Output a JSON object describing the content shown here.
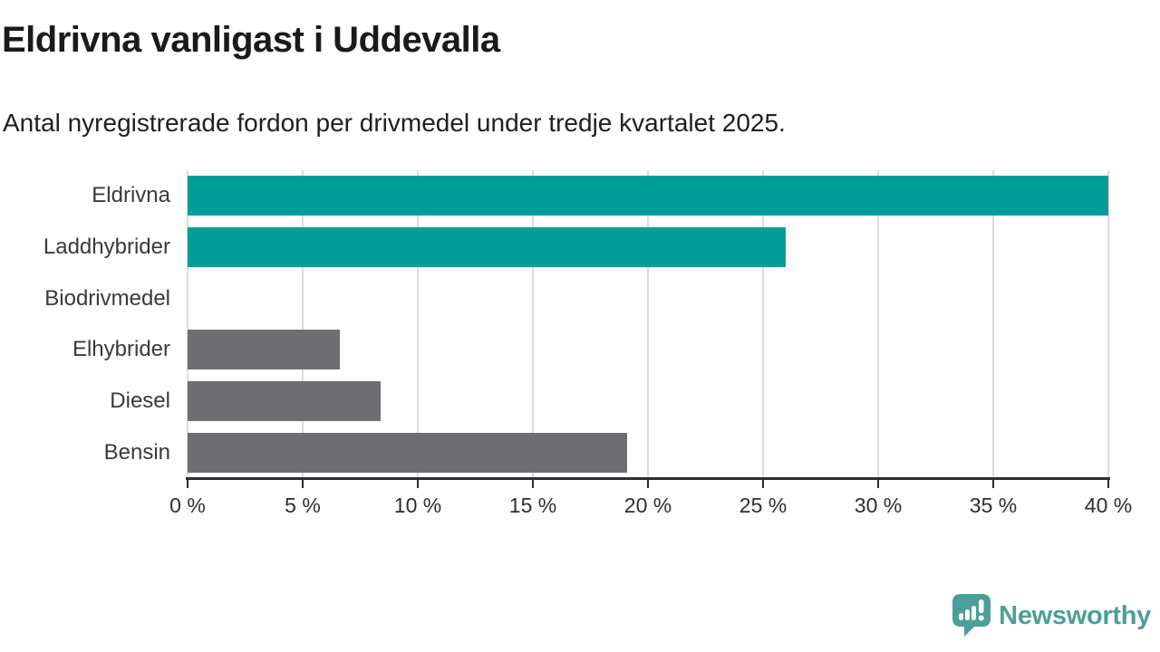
{
  "header": {
    "title": "Eldrivna vanligast i Uddevalla",
    "subtitle": "Antal nyregistrerade fordon per drivmedel under tredje kvartalet 2025."
  },
  "chart_data": {
    "type": "bar",
    "orientation": "horizontal",
    "title": "Eldrivna vanligast i Uddevalla",
    "subtitle": "Antal nyregistrerade fordon per drivmedel under tredje kvartalet 2025.",
    "categories": [
      "Eldrivna",
      "Laddhybrider",
      "Biodrivmedel",
      "Elhybrider",
      "Diesel",
      "Bensin"
    ],
    "values": [
      40.0,
      26.0,
      0.0,
      6.6,
      8.4,
      19.1
    ],
    "unit": "%",
    "xlim": [
      0,
      40
    ],
    "xticks": [
      0,
      5,
      10,
      15,
      20,
      25,
      30,
      35,
      40
    ],
    "xtick_labels": [
      "0 %",
      "5 %",
      "10 %",
      "15 %",
      "20 %",
      "25 %",
      "30 %",
      "35 %",
      "40 %"
    ],
    "bar_colors": [
      "#009E96",
      "#009E96",
      "#6E6E72",
      "#6E6E72",
      "#6E6E72",
      "#6E6E72"
    ],
    "highlight_color": "#009E96",
    "default_color": "#6E6E72",
    "grid": true,
    "gridline_color": "#dcdcdc",
    "axis_color": "#2d2d2d"
  },
  "footer": {
    "brand": "Newsworthy",
    "brand_color": "#4D9E98",
    "logo_icon": "bar-chart-speech-bubble-icon"
  }
}
